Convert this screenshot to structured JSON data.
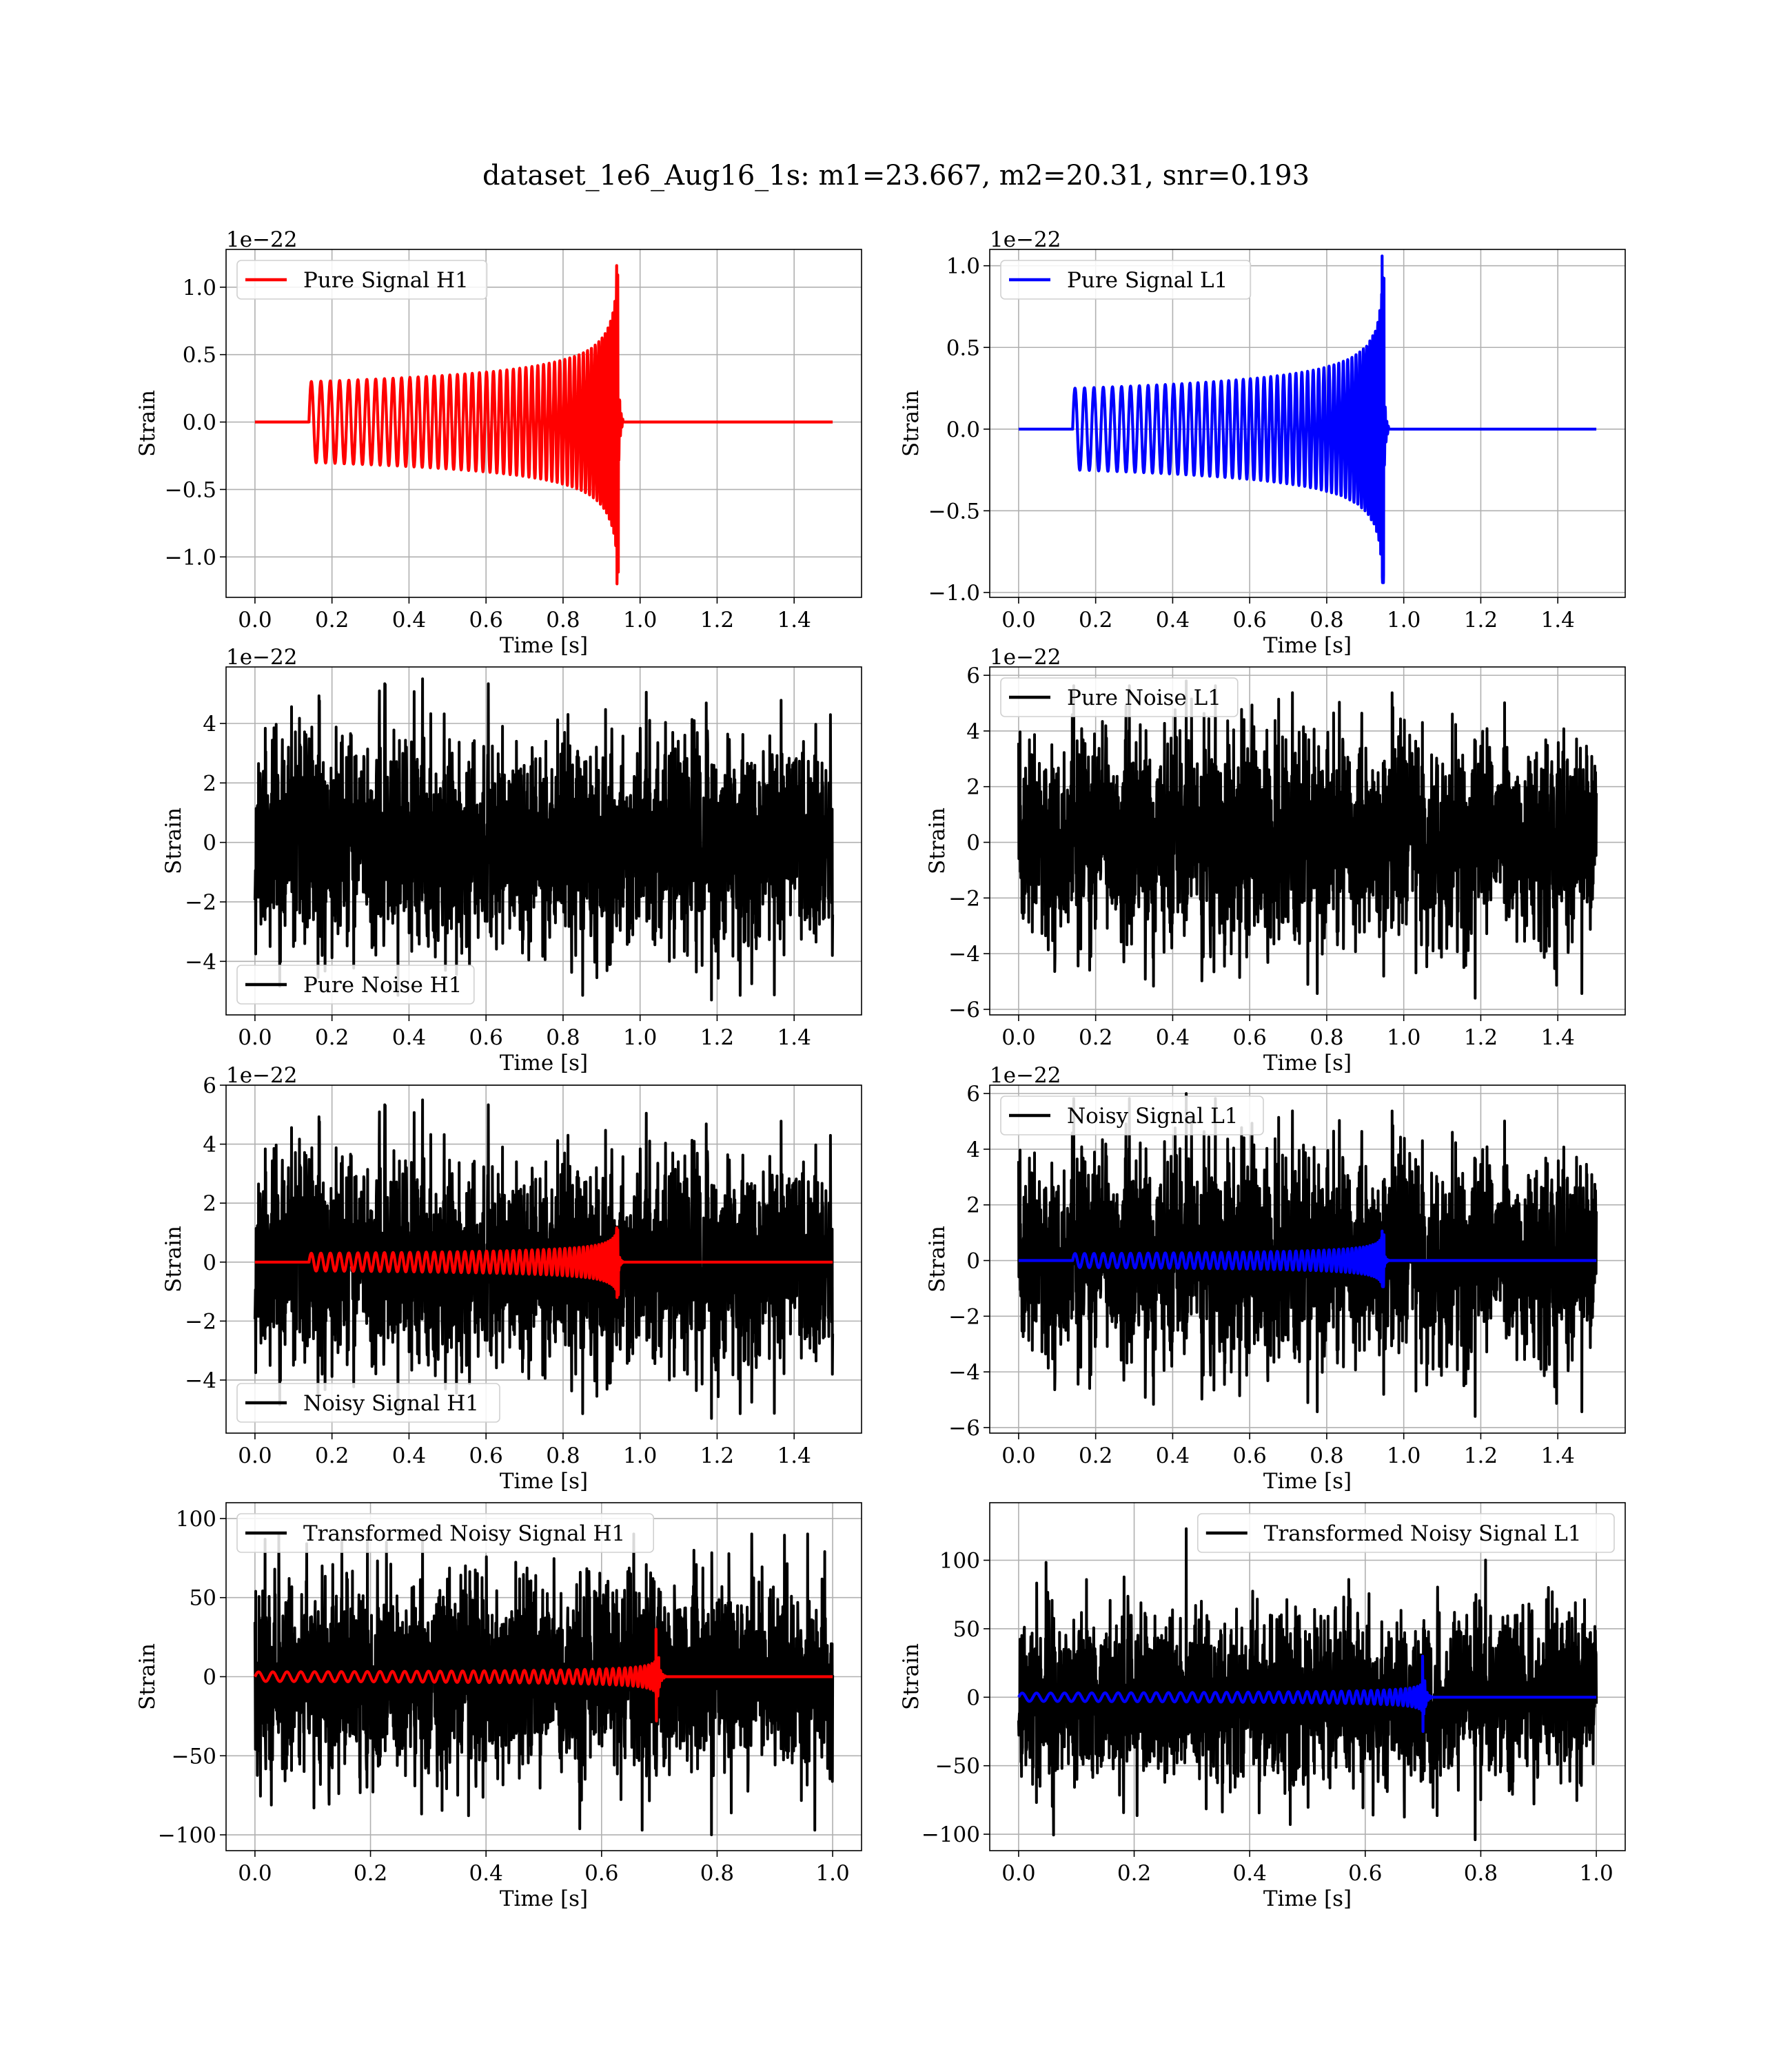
{
  "title": "dataset_1e6_Aug16_1s: m1=23.667, m2=20.31, snr=0.193",
  "colors": {
    "h1": "#ff0000",
    "l1": "#0000ff",
    "noise": "#000000",
    "grid": "#b0b0b0"
  },
  "chart_data": [
    {
      "id": "pure-signal-h1",
      "type": "line",
      "xlabel": "Time [s]",
      "ylabel": "Strain",
      "offset_label": "1e−22",
      "xlim": [
        -0.075,
        1.575
      ],
      "ylim": [
        -1.3,
        1.28
      ],
      "xticks": [
        0.0,
        0.2,
        0.4,
        0.6,
        0.8,
        1.0,
        1.2,
        1.4
      ],
      "xtick_labels": [
        "0.0",
        "0.2",
        "0.4",
        "0.6",
        "0.8",
        "1.0",
        "1.2",
        "1.4"
      ],
      "yticks": [
        -1.0,
        -0.5,
        0.0,
        0.5,
        1.0
      ],
      "ytick_labels": [
        "−1.0",
        "−0.5",
        "0.0",
        "0.5",
        "1.0"
      ],
      "legend": "upper left",
      "grid": true,
      "series": [
        {
          "name": "Pure Signal H1",
          "color": "h1",
          "kind": "chirp",
          "x_start": 0.0,
          "x_end": 1.5,
          "t_start": 0.14,
          "t_merge": 0.94,
          "base_amp": 0.3,
          "peak_amp": 1.16,
          "min_amp": -1.2
        }
      ]
    },
    {
      "id": "pure-signal-l1",
      "type": "line",
      "xlabel": "Time [s]",
      "ylabel": "Strain",
      "offset_label": "1e−22",
      "xlim": [
        -0.075,
        1.575
      ],
      "ylim": [
        -1.03,
        1.1
      ],
      "xticks": [
        0.0,
        0.2,
        0.4,
        0.6,
        0.8,
        1.0,
        1.2,
        1.4
      ],
      "xtick_labels": [
        "0.0",
        "0.2",
        "0.4",
        "0.6",
        "0.8",
        "1.0",
        "1.2",
        "1.4"
      ],
      "yticks": [
        -1.0,
        -0.5,
        0.0,
        0.5,
        1.0
      ],
      "ytick_labels": [
        "−1.0",
        "−0.5",
        "0.0",
        "0.5",
        "1.0"
      ],
      "legend": "upper left",
      "grid": true,
      "series": [
        {
          "name": "Pure Signal L1",
          "color": "l1",
          "kind": "chirp",
          "x_start": 0.0,
          "x_end": 1.5,
          "t_start": 0.14,
          "t_merge": 0.945,
          "base_amp": 0.25,
          "peak_amp": 1.06,
          "min_amp": -0.94
        }
      ]
    },
    {
      "id": "pure-noise-h1",
      "type": "line",
      "xlabel": "Time [s]",
      "ylabel": "Strain",
      "offset_label": "1e−22",
      "xlim": [
        -0.075,
        1.575
      ],
      "ylim": [
        -5.8,
        5.9
      ],
      "xticks": [
        0.0,
        0.2,
        0.4,
        0.6,
        0.8,
        1.0,
        1.2,
        1.4
      ],
      "xtick_labels": [
        "0.0",
        "0.2",
        "0.4",
        "0.6",
        "0.8",
        "1.0",
        "1.2",
        "1.4"
      ],
      "yticks": [
        -4,
        -2,
        0,
        2,
        4
      ],
      "ytick_labels": [
        "−4",
        "−2",
        "0",
        "2",
        "4"
      ],
      "legend": "lower left",
      "grid": true,
      "series": [
        {
          "name": "Pure Noise H1",
          "color": "noise",
          "kind": "noise",
          "x_start": 0.0,
          "x_end": 1.5,
          "seed": 11,
          "amp": 1.7,
          "max": 5.5,
          "min": -5.3
        }
      ]
    },
    {
      "id": "pure-noise-l1",
      "type": "line",
      "xlabel": "Time [s]",
      "ylabel": "Strain",
      "offset_label": "1e−22",
      "xlim": [
        -0.075,
        1.575
      ],
      "ylim": [
        -6.2,
        6.3
      ],
      "xticks": [
        0.0,
        0.2,
        0.4,
        0.6,
        0.8,
        1.0,
        1.2,
        1.4
      ],
      "xtick_labels": [
        "0.0",
        "0.2",
        "0.4",
        "0.6",
        "0.8",
        "1.0",
        "1.2",
        "1.4"
      ],
      "yticks": [
        -6,
        -4,
        -2,
        0,
        2,
        4,
        6
      ],
      "ytick_labels": [
        "−6",
        "−4",
        "−2",
        "0",
        "2",
        "4",
        "6"
      ],
      "legend": "upper left",
      "grid": true,
      "series": [
        {
          "name": "Pure Noise L1",
          "color": "noise",
          "kind": "noise",
          "x_start": 0.0,
          "x_end": 1.5,
          "seed": 23,
          "amp": 1.8,
          "max": 5.8,
          "min": -5.6
        }
      ]
    },
    {
      "id": "noisy-signal-h1",
      "type": "line",
      "xlabel": "Time [s]",
      "ylabel": "Strain",
      "offset_label": "1e−22",
      "xlim": [
        -0.075,
        1.575
      ],
      "ylim": [
        -5.8,
        6.0
      ],
      "xticks": [
        0.0,
        0.2,
        0.4,
        0.6,
        0.8,
        1.0,
        1.2,
        1.4
      ],
      "xtick_labels": [
        "0.0",
        "0.2",
        "0.4",
        "0.6",
        "0.8",
        "1.0",
        "1.2",
        "1.4"
      ],
      "yticks": [
        -4,
        -2,
        0,
        2,
        4,
        6
      ],
      "ytick_labels": [
        "−4",
        "−2",
        "0",
        "2",
        "4",
        "6"
      ],
      "legend": "lower left",
      "grid": true,
      "series": [
        {
          "name": "Noisy Signal H1",
          "color": "noise",
          "kind": "noise",
          "x_start": 0.0,
          "x_end": 1.5,
          "seed": 11,
          "amp": 1.7,
          "max": 5.5,
          "min": -5.3
        },
        {
          "color": "h1",
          "kind": "chirp",
          "x_start": 0.0,
          "x_end": 1.5,
          "t_start": 0.14,
          "t_merge": 0.94,
          "base_amp": 0.3,
          "peak_amp": 1.16,
          "min_amp": -1.2
        }
      ]
    },
    {
      "id": "noisy-signal-l1",
      "type": "line",
      "xlabel": "Time [s]",
      "ylabel": "Strain",
      "offset_label": "1e−22",
      "xlim": [
        -0.075,
        1.575
      ],
      "ylim": [
        -6.2,
        6.3
      ],
      "xticks": [
        0.0,
        0.2,
        0.4,
        0.6,
        0.8,
        1.0,
        1.2,
        1.4
      ],
      "xtick_labels": [
        "0.0",
        "0.2",
        "0.4",
        "0.6",
        "0.8",
        "1.0",
        "1.2",
        "1.4"
      ],
      "yticks": [
        -6,
        -4,
        -2,
        0,
        2,
        4,
        6
      ],
      "ytick_labels": [
        "−6",
        "−4",
        "−2",
        "0",
        "2",
        "4",
        "6"
      ],
      "legend": "upper left",
      "grid": true,
      "series": [
        {
          "name": "Noisy Signal L1",
          "color": "noise",
          "kind": "noise",
          "x_start": 0.0,
          "x_end": 1.5,
          "seed": 23,
          "amp": 1.8,
          "max": 6.0,
          "min": -5.6
        },
        {
          "color": "l1",
          "kind": "chirp",
          "x_start": 0.0,
          "x_end": 1.5,
          "t_start": 0.14,
          "t_merge": 0.945,
          "base_amp": 0.25,
          "peak_amp": 1.06,
          "min_amp": -0.94
        }
      ]
    },
    {
      "id": "transformed-noisy-signal-h1",
      "type": "line",
      "xlabel": "Time [s]",
      "ylabel": "Strain",
      "offset_label": "",
      "xlim": [
        -0.05,
        1.05
      ],
      "ylim": [
        -110,
        110
      ],
      "xticks": [
        0.0,
        0.2,
        0.4,
        0.6,
        0.8,
        1.0
      ],
      "xtick_labels": [
        "0.0",
        "0.2",
        "0.4",
        "0.6",
        "0.8",
        "1.0"
      ],
      "yticks": [
        -100,
        -50,
        0,
        50,
        100
      ],
      "ytick_labels": [
        "−100",
        "−50",
        "0",
        "50",
        "100"
      ],
      "legend": "upper left",
      "grid": true,
      "series": [
        {
          "name": "Transformed Noisy Signal H1",
          "color": "noise",
          "kind": "noise",
          "x_start": 0.0,
          "x_end": 1.0,
          "seed": 37,
          "amp": 30,
          "max": 93,
          "min": -100
        },
        {
          "color": "h1",
          "kind": "chirp",
          "x_start": 0.0,
          "x_end": 1.0,
          "t_start": 0.0,
          "t_merge": 0.695,
          "base_amp": 3,
          "peak_amp": 30,
          "min_amp": -28
        }
      ]
    },
    {
      "id": "transformed-noisy-signal-l1",
      "type": "line",
      "xlabel": "Time [s]",
      "ylabel": "Strain",
      "offset_label": "",
      "xlim": [
        -0.05,
        1.05
      ],
      "ylim": [
        -112,
        142
      ],
      "xticks": [
        0.0,
        0.2,
        0.4,
        0.6,
        0.8,
        1.0
      ],
      "xtick_labels": [
        "0.0",
        "0.2",
        "0.4",
        "0.6",
        "0.8",
        "1.0"
      ],
      "yticks": [
        -100,
        -50,
        0,
        50,
        100
      ],
      "ytick_labels": [
        "−100",
        "−50",
        "0",
        "50",
        "100"
      ],
      "legend": "upper right",
      "grid": true,
      "series": [
        {
          "name": "Transformed Noisy Signal L1",
          "color": "noise",
          "kind": "noise",
          "x_start": 0.0,
          "x_end": 1.0,
          "seed": 41,
          "amp": 30,
          "max": 123,
          "min": -104
        },
        {
          "color": "l1",
          "kind": "chirp",
          "x_start": 0.0,
          "x_end": 1.0,
          "t_start": 0.0,
          "t_merge": 0.7,
          "base_amp": 3,
          "peak_amp": 30,
          "min_amp": -25
        }
      ]
    }
  ]
}
